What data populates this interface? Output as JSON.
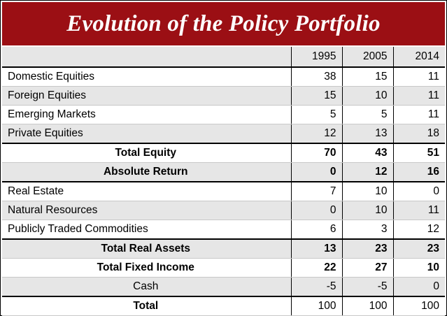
{
  "title": "Evolution of the Policy Portfolio",
  "columns": [
    "",
    "1995",
    "2005",
    "2014"
  ],
  "rows": [
    {
      "label": "Domestic Equities",
      "v1995": "38",
      "v2005": "15",
      "v2014": "11"
    },
    {
      "label": "Foreign Equities",
      "v1995": "15",
      "v2005": "10",
      "v2014": "11"
    },
    {
      "label": "Emerging Markets",
      "v1995": "5",
      "v2005": "5",
      "v2014": "11"
    },
    {
      "label": "Private Equities",
      "v1995": "12",
      "v2005": "13",
      "v2014": "18"
    },
    {
      "label": "Total Equity",
      "v1995": "70",
      "v2005": "43",
      "v2014": "51"
    },
    {
      "label": "Absolute Return",
      "v1995": "0",
      "v2005": "12",
      "v2014": "16"
    },
    {
      "label": "Real Estate",
      "v1995": "7",
      "v2005": "10",
      "v2014": "0"
    },
    {
      "label": "Natural Resources",
      "v1995": "0",
      "v2005": "10",
      "v2014": "11"
    },
    {
      "label": "Publicly Traded Commodities",
      "v1995": "6",
      "v2005": "3",
      "v2014": "12"
    },
    {
      "label": "Total Real Assets",
      "v1995": "13",
      "v2005": "23",
      "v2014": "23"
    },
    {
      "label": "Total Fixed Income",
      "v1995": "22",
      "v2005": "27",
      "v2014": "10"
    },
    {
      "label": "Cash",
      "v1995": "-5",
      "v2005": "-5",
      "v2014": "0"
    },
    {
      "label": "Total",
      "v1995": "100",
      "v2005": "100",
      "v2014": "100"
    }
  ],
  "colors": {
    "title_bg": "#9b0f14",
    "title_text": "#ffffff",
    "alt_row": "#e6e6e6"
  }
}
